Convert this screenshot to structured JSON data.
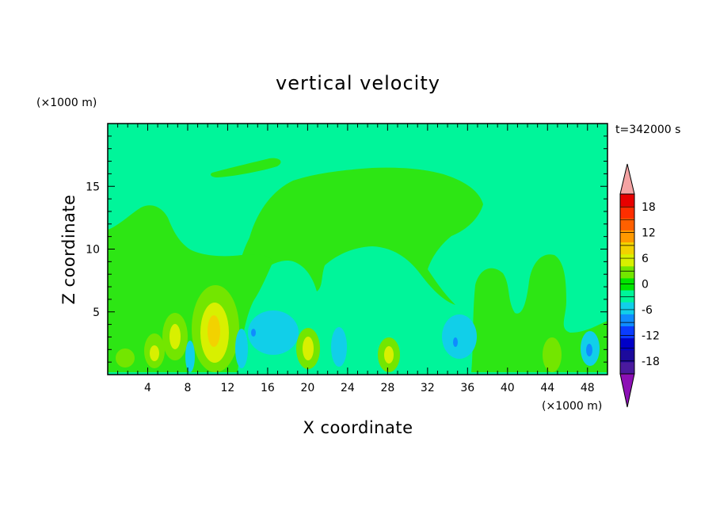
{
  "chart_data": {
    "type": "heatmap",
    "title": "vertical velocity",
    "xlabel": "X coordinate",
    "ylabel": "Z coordinate",
    "x_unit": "(×1000 m)",
    "y_unit": "(×1000 m)",
    "time_label": "t=342000 s",
    "xlim": [
      0,
      50
    ],
    "ylim": [
      0,
      20
    ],
    "x_ticks": [
      4,
      8,
      12,
      16,
      20,
      24,
      28,
      32,
      36,
      40,
      44,
      48
    ],
    "y_ticks": [
      5,
      10,
      15
    ],
    "colorbar": {
      "levels": [
        -21,
        -18,
        -15,
        -12,
        -9,
        -6,
        -3,
        0,
        3,
        6,
        9,
        12,
        15,
        18,
        21
      ],
      "tick_labels": [
        "18",
        "12",
        "6",
        "0",
        "-6",
        "-12",
        "-18"
      ],
      "tick_values": [
        18,
        12,
        6,
        0,
        -6,
        -12,
        -18
      ],
      "colors": [
        "#4a1a9e",
        "#1c0a9c",
        "#0000c8",
        "#0a3cff",
        "#0f8cff",
        "#11cfe9",
        "#00f59a",
        "#00e600",
        "#73e600",
        "#d8f000",
        "#f2d200",
        "#ff9900",
        "#ff6000",
        "#ff2e00",
        "#e80000"
      ],
      "under_color": "#8c10b5",
      "over_color": "#f4a3a3"
    },
    "background_value": 0,
    "features": [
      {
        "kind": "updraft",
        "x": 10.5,
        "z": 3.2,
        "peak": 10
      },
      {
        "kind": "updraft",
        "x": 6.8,
        "z": 3.5,
        "peak": 5
      },
      {
        "kind": "updraft",
        "x": 4.6,
        "z": 1.8,
        "peak": 5
      },
      {
        "kind": "updraft",
        "x": 19.8,
        "z": 2.1,
        "peak": 8
      },
      {
        "kind": "updraft",
        "x": 28.2,
        "z": 1.6,
        "peak": 6
      },
      {
        "kind": "updraft",
        "x": 44.5,
        "z": 2.0,
        "peak": 4
      },
      {
        "kind": "downdraft",
        "x": 16.5,
        "z": 3.0,
        "peak": -4
      },
      {
        "kind": "downdraft",
        "x": 35.0,
        "z": 3.0,
        "peak": -4
      },
      {
        "kind": "downdraft",
        "x": 47.5,
        "z": 2.0,
        "peak": -4
      }
    ]
  }
}
